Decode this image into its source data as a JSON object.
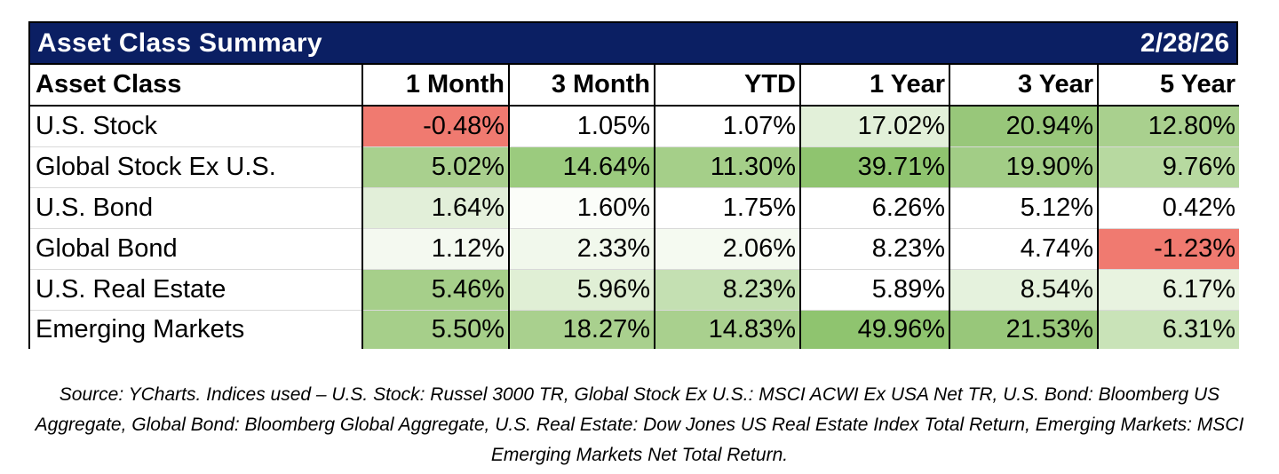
{
  "title": "Asset Class Summary",
  "date": "2/28/26",
  "columns": [
    "Asset Class",
    "1 Month",
    "3 Month",
    "YTD",
    "1 Year",
    "3 Year",
    "5 Year"
  ],
  "rows": [
    {
      "label": "U.S. Stock",
      "values": [
        "-0.48%",
        "1.05%",
        "1.07%",
        "17.02%",
        "20.94%",
        "12.80%"
      ],
      "colors": [
        "#f07a70",
        "#ffffff",
        "#ffffff",
        "#e2f0d9",
        "#98c77a",
        "#a9d08e"
      ]
    },
    {
      "label": "Global Stock Ex U.S.",
      "values": [
        "5.02%",
        "14.64%",
        "11.30%",
        "39.71%",
        "19.90%",
        "9.76%"
      ],
      "colors": [
        "#a9d08e",
        "#9bcb7e",
        "#a5cf89",
        "#8fc46f",
        "#a2cd86",
        "#b7d9a0"
      ]
    },
    {
      "label": "U.S. Bond",
      "values": [
        "1.64%",
        "1.60%",
        "1.75%",
        "6.26%",
        "5.12%",
        "0.42%"
      ],
      "colors": [
        "#e2efd9",
        "#fbfdf9",
        "#ffffff",
        "#ffffff",
        "#ffffff",
        "#ffffff"
      ]
    },
    {
      "label": "Global Bond",
      "values": [
        "1.12%",
        "2.33%",
        "2.06%",
        "8.23%",
        "4.74%",
        "-1.23%"
      ],
      "colors": [
        "#f4f9f0",
        "#f1f8ec",
        "#f5faf1",
        "#ffffff",
        "#ffffff",
        "#f07a70"
      ]
    },
    {
      "label": "U.S. Real Estate",
      "values": [
        "5.46%",
        "5.96%",
        "8.23%",
        "5.89%",
        "8.54%",
        "6.17%"
      ],
      "colors": [
        "#a6cf8a",
        "#e0efd5",
        "#c4e0b2",
        "#ffffff",
        "#e5f2dd",
        "#e8f3e0"
      ]
    },
    {
      "label": "Emerging Markets",
      "values": [
        "5.50%",
        "18.27%",
        "14.83%",
        "49.96%",
        "21.53%",
        "6.31%"
      ],
      "colors": [
        "#a6cf8a",
        "#a9d08e",
        "#a9d08e",
        "#8fc46f",
        "#98c77a",
        "#c9e3b8"
      ]
    }
  ],
  "footnote": "Source: YCharts. Indices used – U.S. Stock: Russel 3000 TR, Global Stock Ex U.S.: MSCI ACWI Ex USA Net TR, U.S. Bond: Bloomberg US Aggregate, Global Bond: Bloomberg Global Aggregate, U.S. Real Estate: Dow Jones US Real Estate Index Total Return, Emerging Markets: MSCI Emerging Markets Net Total Return."
}
